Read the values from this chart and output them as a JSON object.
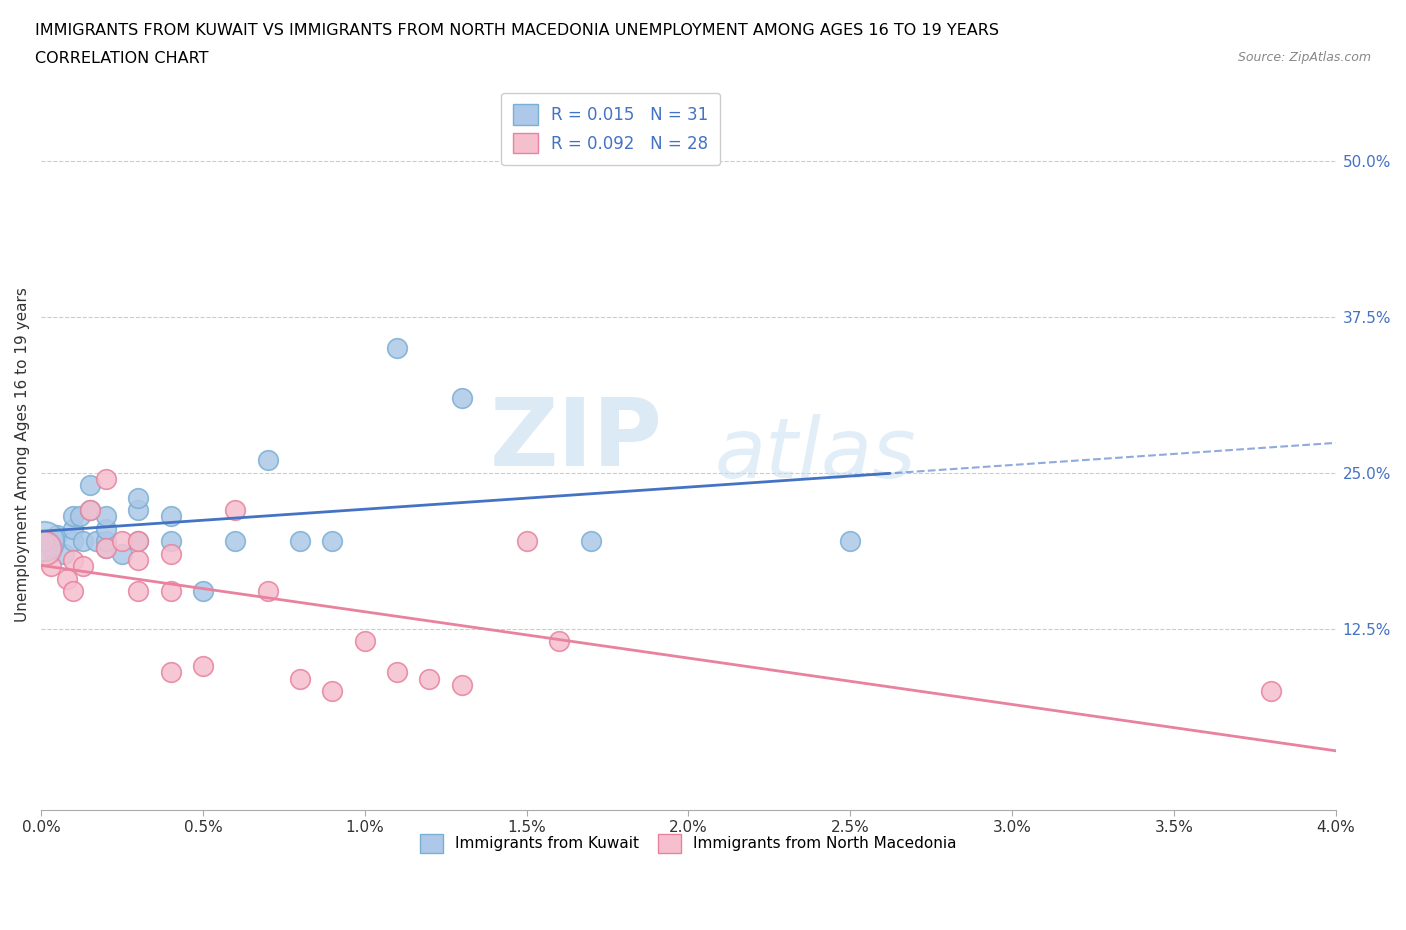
{
  "title_line1": "IMMIGRANTS FROM KUWAIT VS IMMIGRANTS FROM NORTH MACEDONIA UNEMPLOYMENT AMONG AGES 16 TO 19 YEARS",
  "title_line2": "CORRELATION CHART",
  "source_text": "Source: ZipAtlas.com",
  "ylabel": "Unemployment Among Ages 16 to 19 years",
  "xlim": [
    0.0,
    0.04
  ],
  "ylim": [
    -0.02,
    0.55
  ],
  "xtick_labels": [
    "0.0%",
    "0.5%",
    "1.0%",
    "1.5%",
    "2.0%",
    "2.5%",
    "3.0%",
    "3.5%",
    "4.0%"
  ],
  "xtick_vals": [
    0.0,
    0.005,
    0.01,
    0.015,
    0.02,
    0.025,
    0.03,
    0.035,
    0.04
  ],
  "ytick_labels": [
    "12.5%",
    "25.0%",
    "37.5%",
    "50.0%"
  ],
  "ytick_vals": [
    0.125,
    0.25,
    0.375,
    0.5
  ],
  "kuwait_color": "#adc8e8",
  "kuwait_edge_color": "#7aafd4",
  "n_macedonia_color": "#f5bfce",
  "n_macedonia_edge_color": "#e8829e",
  "trend_kuwait_color": "#4472c4",
  "trend_n_macedonia_color": "#e8829e",
  "legend_R_kuwait": "0.015",
  "legend_N_kuwait": "31",
  "legend_R_n_macedonia": "0.092",
  "legend_N_n_macedonia": "28",
  "watermark_zip": "ZIP",
  "watermark_atlas": "atlas",
  "kuwait_x": [
    0.0001,
    0.0003,
    0.0005,
    0.0007,
    0.001,
    0.001,
    0.001,
    0.0012,
    0.0013,
    0.0015,
    0.0015,
    0.0017,
    0.002,
    0.002,
    0.002,
    0.002,
    0.0025,
    0.003,
    0.003,
    0.003,
    0.004,
    0.004,
    0.005,
    0.006,
    0.007,
    0.008,
    0.009,
    0.011,
    0.013,
    0.017,
    0.025
  ],
  "kuwait_y": [
    0.195,
    0.19,
    0.2,
    0.185,
    0.195,
    0.205,
    0.215,
    0.215,
    0.195,
    0.22,
    0.24,
    0.195,
    0.19,
    0.195,
    0.205,
    0.215,
    0.185,
    0.195,
    0.22,
    0.23,
    0.215,
    0.195,
    0.155,
    0.195,
    0.26,
    0.195,
    0.195,
    0.35,
    0.31,
    0.195,
    0.195
  ],
  "n_macedonia_x": [
    0.0001,
    0.0003,
    0.0008,
    0.001,
    0.001,
    0.0013,
    0.0015,
    0.002,
    0.002,
    0.0025,
    0.003,
    0.003,
    0.003,
    0.004,
    0.004,
    0.004,
    0.005,
    0.006,
    0.007,
    0.008,
    0.009,
    0.01,
    0.011,
    0.012,
    0.013,
    0.015,
    0.016,
    0.038
  ],
  "n_macedonia_y": [
    0.195,
    0.175,
    0.165,
    0.155,
    0.18,
    0.175,
    0.22,
    0.19,
    0.245,
    0.195,
    0.155,
    0.18,
    0.195,
    0.09,
    0.155,
    0.185,
    0.095,
    0.22,
    0.155,
    0.085,
    0.075,
    0.115,
    0.09,
    0.085,
    0.08,
    0.195,
    0.115,
    0.075
  ]
}
